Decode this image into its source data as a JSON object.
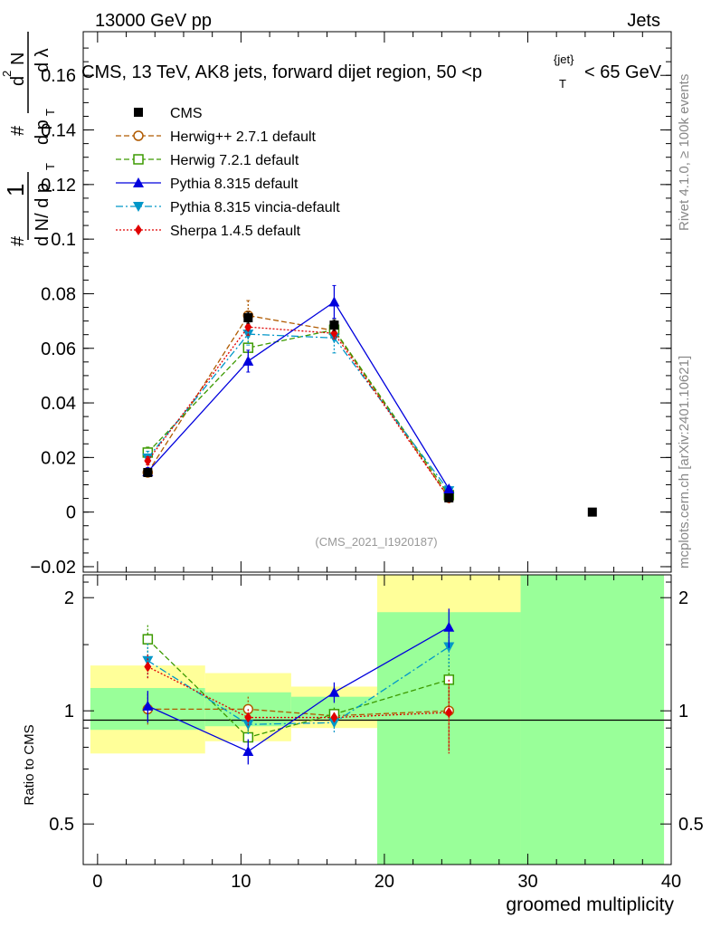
{
  "header": {
    "left": "13000 GeV pp",
    "right": "Jets",
    "plot_title": "CMS, 13 TeV, AK8 jets, forward dijet region, 50 <p",
    "plot_title_sup": "{jet}",
    "plot_title_sub": "T",
    "plot_title_end": "< 65 GeV"
  },
  "side_labels": {
    "rivet": "Rivet 4.1.0, ≥ 100k events",
    "mcplots": "mcplots.cern.ch [arXiv:2401.10621]"
  },
  "watermark": "(CMS_2021_I1920187)",
  "y_label_parts": [
    "#",
    "1",
    "d N/ d p",
    "T",
    "#",
    "d p",
    "T",
    "d",
    "2",
    "N",
    "d λ"
  ],
  "chart_data": [
    {
      "type": "scatter",
      "panel": "main",
      "xlim": [
        -1,
        40
      ],
      "ylim": [
        -0.022,
        0.176
      ],
      "yticks": [
        -0.02,
        0,
        0.02,
        0.04,
        0.06,
        0.08,
        0.1,
        0.12,
        0.14,
        0.16
      ],
      "ytick_labels": [
        "−0.02",
        "0",
        "0.02",
        "0.04",
        "0.06",
        "0.08",
        "0.1",
        "0.12",
        "0.14",
        "0.16"
      ],
      "series": [
        {
          "name": "CMS",
          "color": "#000000",
          "marker": "square-filled",
          "dash": "none",
          "x": [
            3.5,
            10.5,
            16.5,
            24.5,
            34.5
          ],
          "y": [
            0.0145,
            0.0712,
            0.0685,
            0.0052,
            0.0
          ],
          "err": [
            0.001,
            0.002,
            0.002,
            0.0005,
            0
          ]
        },
        {
          "name": "Herwig++ 2.7.1 default",
          "color": "#b05a00",
          "marker": "circle-open",
          "dash": "6,3",
          "x": [
            3.5,
            10.5,
            16.5,
            24.5
          ],
          "y": [
            0.0145,
            0.072,
            0.0665,
            0.0052
          ],
          "err": [
            0.001,
            0.0055,
            0.002,
            0.0012
          ]
        },
        {
          "name": "Herwig 7.2.1 default",
          "color": "#3c9a00",
          "marker": "square-open",
          "dash": "6,3",
          "x": [
            3.5,
            10.5,
            16.5,
            24.5
          ],
          "y": [
            0.0218,
            0.0602,
            0.0668,
            0.0062
          ],
          "err": [
            0.002,
            0.004,
            0.002,
            0.0008
          ]
        },
        {
          "name": "Pythia 8.315 default",
          "color": "#0000dd",
          "marker": "triangle-up",
          "dash": "none",
          "x": [
            3.5,
            10.5,
            16.5,
            24.5
          ],
          "y": [
            0.0148,
            0.0553,
            0.077,
            0.0085
          ],
          "err": [
            0.0015,
            0.004,
            0.006,
            0.0008
          ]
        },
        {
          "name": "Pythia 8.315 vincia-default",
          "color": "#0096c8",
          "marker": "triangle-down",
          "dash": "8,3,2,3",
          "x": [
            3.5,
            10.5,
            16.5,
            24.5
          ],
          "y": [
            0.0198,
            0.0652,
            0.0638,
            0.0078
          ],
          "err": [
            0.0025,
            0.004,
            0.0055,
            0.0008
          ]
        },
        {
          "name": "Sherpa 1.4.5 default",
          "color": "#e00000",
          "marker": "diamond",
          "dash": "2,2",
          "x": [
            3.5,
            10.5,
            16.5,
            24.5
          ],
          "y": [
            0.0188,
            0.0678,
            0.0655,
            0.0051
          ],
          "err": [
            0.0015,
            0.003,
            0.002,
            0.0012
          ]
        }
      ]
    },
    {
      "type": "scatter",
      "panel": "ratio",
      "ylabel": "Ratio to CMS",
      "xlabel": "groomed multiplicity",
      "scale": "log",
      "ylim": [
        0.39,
        2.3
      ],
      "yticks": [
        0.5,
        1,
        2
      ],
      "ytick_labels": [
        "0.5",
        "1",
        "2"
      ],
      "xticks": [
        0,
        10,
        20,
        30,
        40
      ],
      "xtick_labels": [
        "0",
        "10",
        "20",
        "30",
        "40"
      ],
      "bands": [
        {
          "x0": -0.5,
          "x1": 7.5,
          "inner": [
            0.89,
            1.15
          ],
          "outer": [
            0.77,
            1.32
          ]
        },
        {
          "x0": 7.5,
          "x1": 13.5,
          "inner": [
            0.91,
            1.12
          ],
          "outer": [
            0.83,
            1.26
          ]
        },
        {
          "x0": 13.5,
          "x1": 19.5,
          "inner": [
            0.95,
            1.09
          ],
          "outer": [
            0.9,
            1.16
          ]
        },
        {
          "x0": 19.5,
          "x1": 29.5,
          "inner": [
            0.39,
            1.83
          ],
          "outer": [
            0.39,
            2.3
          ]
        },
        {
          "x0": 29.5,
          "x1": 39.5,
          "inner": [
            0.39,
            2.3
          ],
          "outer": [
            0.39,
            2.3
          ]
        }
      ],
      "series": [
        {
          "name": "Herwig++ 2.7.1 default",
          "color": "#b05a00",
          "marker": "circle-open",
          "dash": "6,3",
          "x": [
            3.5,
            10.5,
            16.5,
            24.5
          ],
          "y": [
            1.01,
            1.01,
            0.97,
            1.0
          ],
          "err": [
            0.1,
            0.08,
            0.03,
            0.22
          ]
        },
        {
          "name": "Herwig 7.2.1 default",
          "color": "#3c9a00",
          "marker": "square-open",
          "dash": "6,3",
          "x": [
            3.5,
            10.5,
            16.5,
            24.5
          ],
          "y": [
            1.55,
            0.85,
            0.98,
            1.21
          ],
          "err": [
            0.14,
            0.06,
            0.04,
            0.17
          ]
        },
        {
          "name": "Pythia 8.315 default",
          "color": "#0000dd",
          "marker": "triangle-up",
          "dash": "none",
          "x": [
            3.5,
            10.5,
            16.5,
            24.5
          ],
          "y": [
            1.03,
            0.78,
            1.12,
            1.67
          ],
          "err": [
            0.1,
            0.06,
            0.07,
            0.2
          ]
        },
        {
          "name": "Pythia 8.315 vincia-default",
          "color": "#0096c8",
          "marker": "triangle-down",
          "dash": "8,3,2,3",
          "x": [
            3.5,
            10.5,
            16.5,
            24.5
          ],
          "y": [
            1.36,
            0.92,
            0.93,
            1.48
          ],
          "err": [
            0.15,
            0.06,
            0.06,
            0.17
          ]
        },
        {
          "name": "Sherpa 1.4.5 default",
          "color": "#e00000",
          "marker": "diamond",
          "dash": "2,2",
          "x": [
            3.5,
            10.5,
            16.5,
            24.5
          ],
          "y": [
            1.31,
            0.96,
            0.96,
            0.99
          ],
          "err": [
            0.1,
            0.05,
            0.03,
            0.22
          ]
        }
      ]
    }
  ]
}
